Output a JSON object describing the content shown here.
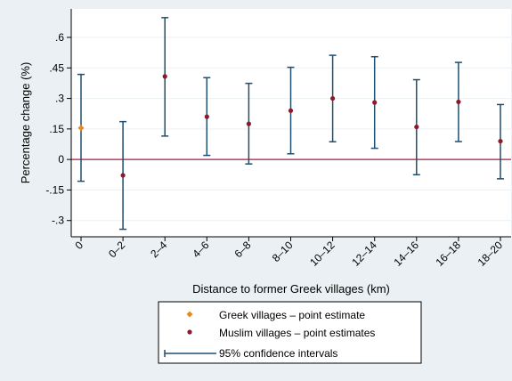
{
  "chart_data": {
    "type": "scatter",
    "xlabel": "Distance to former Greek villages (km)",
    "ylabel": "Percentage change (%)",
    "ylim": [
      -0.38,
      0.74
    ],
    "yticks": [
      -0.3,
      -0.15,
      0,
      0.15,
      0.3,
      0.45,
      0.6
    ],
    "ytick_labels": [
      "-.3",
      "-.15",
      "0",
      ".15",
      ".3",
      ".45",
      ".6"
    ],
    "categories": [
      "0",
      "0–2",
      "2–4",
      "4–6",
      "6–8",
      "8–10",
      "10–12",
      "12–14",
      "14–16",
      "16–18",
      "18–20"
    ],
    "series": [
      {
        "name": "Greek villages – point estimate",
        "color": "#e8881c",
        "marker": "diamond",
        "points": [
          {
            "x": "0",
            "y": 0.155
          }
        ]
      },
      {
        "name": "Muslim villages – point estimates",
        "color": "#8b1a2b",
        "marker": "circle",
        "points": [
          {
            "x": "0–2",
            "y": -0.078
          },
          {
            "x": "2–4",
            "y": 0.408
          },
          {
            "x": "4–6",
            "y": 0.21
          },
          {
            "x": "6–8",
            "y": 0.175
          },
          {
            "x": "8–10",
            "y": 0.24
          },
          {
            "x": "10–12",
            "y": 0.3
          },
          {
            "x": "12–14",
            "y": 0.28
          },
          {
            "x": "14–16",
            "y": 0.16
          },
          {
            "x": "16–18",
            "y": 0.283
          },
          {
            "x": "18–20",
            "y": 0.09
          }
        ]
      },
      {
        "name": "95% confidence intervals",
        "color": "#1f4e6e",
        "marker": "errorbar",
        "intervals": [
          {
            "x": "0",
            "low": -0.107,
            "high": 0.418
          },
          {
            "x": "0–2",
            "low": -0.343,
            "high": 0.186
          },
          {
            "x": "2–4",
            "low": 0.115,
            "high": 0.697
          },
          {
            "x": "4–6",
            "low": 0.02,
            "high": 0.402
          },
          {
            "x": "6–8",
            "low": -0.022,
            "high": 0.374
          },
          {
            "x": "8–10",
            "low": 0.028,
            "high": 0.453
          },
          {
            "x": "10–12",
            "low": 0.087,
            "high": 0.512
          },
          {
            "x": "12–14",
            "low": 0.055,
            "high": 0.505
          },
          {
            "x": "14–16",
            "low": -0.075,
            "high": 0.392
          },
          {
            "x": "16–18",
            "low": 0.088,
            "high": 0.477
          },
          {
            "x": "18–20",
            "low": -0.095,
            "high": 0.27
          }
        ]
      }
    ],
    "reference_line": {
      "y": 0,
      "color": "#b0143c"
    },
    "legend_position": "bottom-center",
    "grid": "horizontal"
  }
}
